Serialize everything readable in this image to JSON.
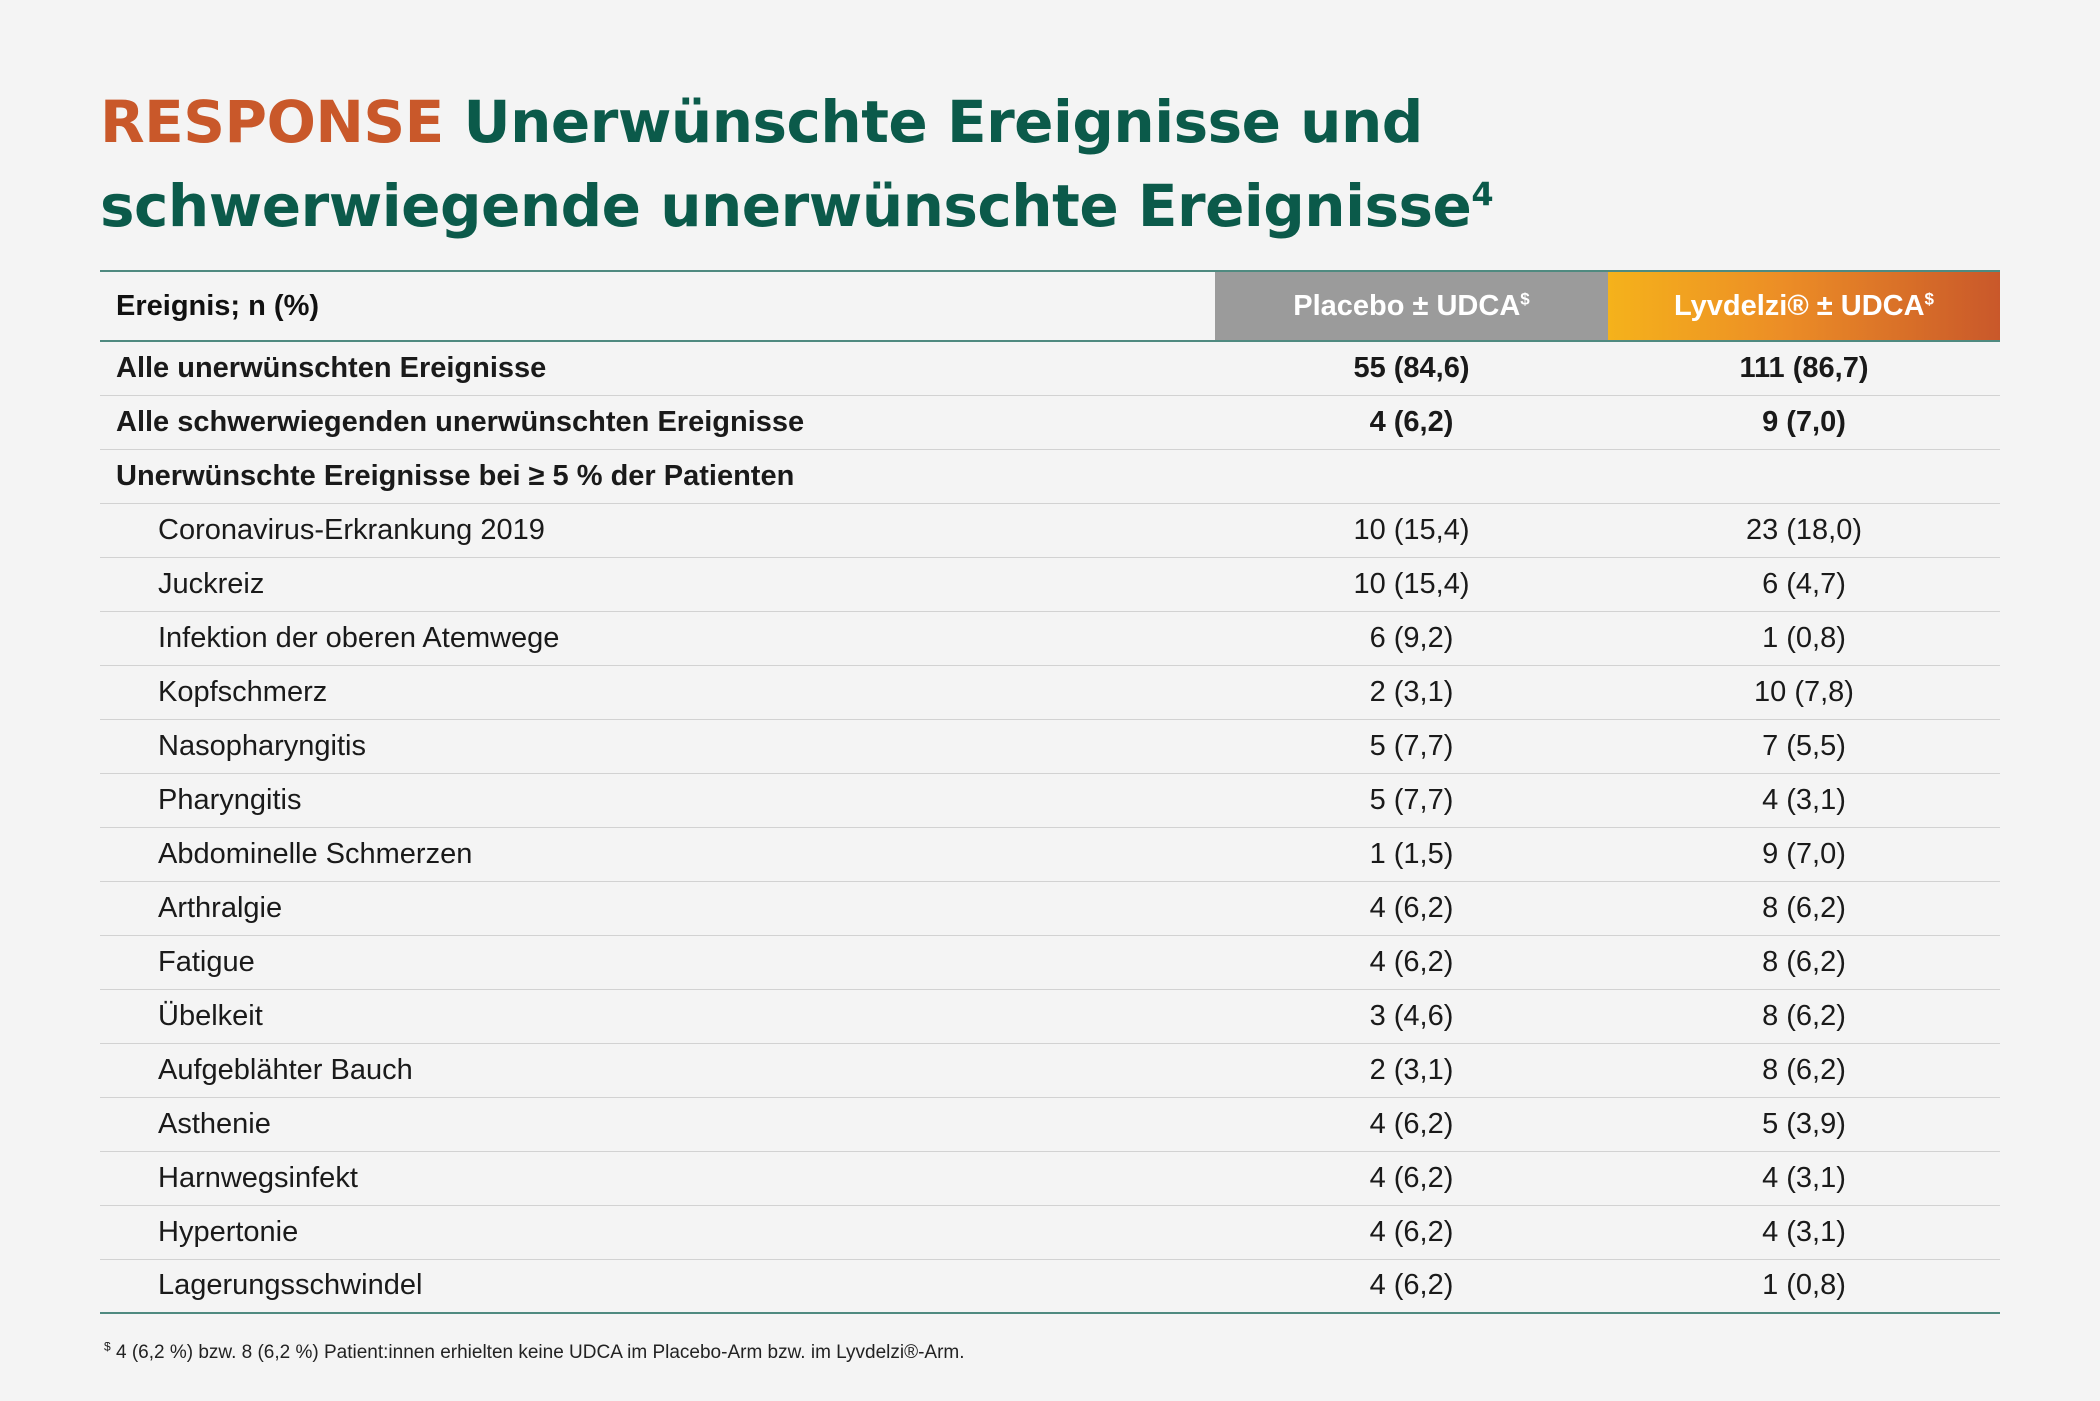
{
  "title": {
    "brand": "RESPONSE",
    "line1_rest": "Unerwünschte Ereignisse und",
    "line2": "schwerwiegende unerwünschte Ereignisse",
    "footnote_ref": "4"
  },
  "table": {
    "headers": {
      "event": "Ereignis; n (%)",
      "placebo": "Placebo ± UDCA",
      "placebo_mark": "$",
      "drug": "Lyvdelzi® ± UDCA",
      "drug_mark": "$"
    },
    "rows": [
      {
        "label": "Alle unerwünschten Ereignisse",
        "placebo": "55 (84,6)",
        "drug": "111 (86,7)"
      },
      {
        "label": "Alle schwerwiegenden unerwünschten Ereignisse",
        "placebo": "4 (6,2)",
        "drug": "9 (7,0)"
      },
      {
        "label": "Unerwünschte Ereignisse bei ≥ 5 % der Patienten",
        "placebo": "",
        "drug": ""
      },
      {
        "label": "Coronavirus-Erkrankung 2019",
        "placebo": "10 (15,4)",
        "drug": "23 (18,0)"
      },
      {
        "label": "Juckreiz",
        "placebo": "10 (15,4)",
        "drug": "6 (4,7)"
      },
      {
        "label": "Infektion der oberen Atemwege",
        "placebo": "6 (9,2)",
        "drug": "1 (0,8)"
      },
      {
        "label": "Kopfschmerz",
        "placebo": "2 (3,1)",
        "drug": "10 (7,8)"
      },
      {
        "label": "Nasopharyngitis",
        "placebo": "5 (7,7)",
        "drug": "7 (5,5)"
      },
      {
        "label": "Pharyngitis",
        "placebo": "5 (7,7)",
        "drug": "4 (3,1)"
      },
      {
        "label": "Abdominelle Schmerzen",
        "placebo": "1 (1,5)",
        "drug": "9 (7,0)"
      },
      {
        "label": "Arthralgie",
        "placebo": "4 (6,2)",
        "drug": "8 (6,2)"
      },
      {
        "label": "Fatigue",
        "placebo": "4 (6,2)",
        "drug": "8 (6,2)"
      },
      {
        "label": "Übelkeit",
        "placebo": "3 (4,6)",
        "drug": "8 (6,2)"
      },
      {
        "label": "Aufgeblähter Bauch",
        "placebo": "2 (3,1)",
        "drug": "8 (6,2)"
      },
      {
        "label": "Asthenie",
        "placebo": "4 (6,2)",
        "drug": "5 (3,9)"
      },
      {
        "label": "Harnwegsinfekt",
        "placebo": "4 (6,2)",
        "drug": "4 (3,1)"
      },
      {
        "label": "Hypertonie",
        "placebo": "4 (6,2)",
        "drug": "4 (3,1)"
      },
      {
        "label": "Lagerungsschwindel",
        "placebo": "4 (6,2)",
        "drug": "1 (0,8)"
      }
    ]
  },
  "footnote": {
    "mark": "$",
    "text": "4 (6,2 %) bzw. 8 (6,2 %) Patient:innen erhielten keine UDCA im Placebo-Arm bzw. im Lyvdelzi®-Arm."
  },
  "colors": {
    "brand": "#c9582a",
    "title": "#0b5a4a",
    "placebo_header": "#9b9b9b",
    "drug_header_start": "#f5b21b",
    "drug_header_end": "#c9582a",
    "rule": "#4f8a80"
  }
}
